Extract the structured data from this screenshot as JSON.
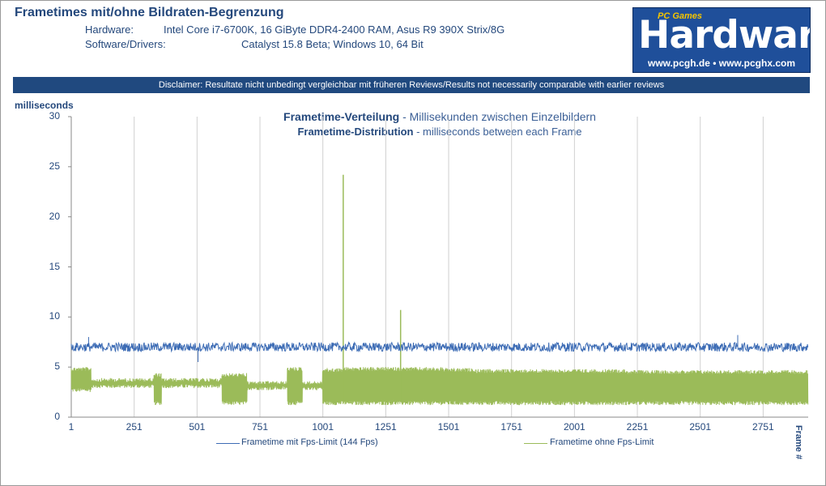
{
  "header": {
    "title": "Frametimes mit/ohne Bildraten-Begrenzung",
    "hardware_label": "Hardware:",
    "hardware_value": "Intel Core i7-6700K, 16 GiByte DDR4-2400  RAM, Asus R9 390X Strix/8G",
    "software_label": "Software/Drivers:",
    "software_value": "Catalyst 15.8 Beta; Windows 10, 64 Bit"
  },
  "logo": {
    "games": "PC Games",
    "main": "Hardware",
    "url": "www.pcgh.de  •  www.pcghx.com"
  },
  "disclaimer": "Disclaimer: Resultate nicht unbedingt vergleichbar mit früheren Reviews/Results not necessarily comparable with earlier reviews",
  "colors": {
    "blue_series": "#3d6cb5",
    "green_series": "#9bbb59",
    "accent": "#20497f"
  },
  "chart_data": {
    "type": "line",
    "title_bold": "Frametime-Verteilung",
    "title_rest": " - Millisekunden zwischen Einzelbildern",
    "subtitle_bold": "Frametime-Distribution",
    "subtitle_rest": " - milliseconds between each Frame",
    "ylabel": "milliseconds",
    "xlabel": "Frame #",
    "ylim": [
      0,
      30
    ],
    "xlim": [
      1,
      2930
    ],
    "yticks": [
      "0",
      "5",
      "10",
      "15",
      "20",
      "25",
      "30"
    ],
    "xticks": [
      "1",
      "251",
      "501",
      "751",
      "1001",
      "1251",
      "1501",
      "1751",
      "2001",
      "2251",
      "2501",
      "2751"
    ],
    "grid": "vertical",
    "legend_position": "bottom",
    "series": [
      {
        "name": "Frametime mit Fps-Limit (144 Fps)",
        "color": "#3d6cb5",
        "mean": 7.0,
        "min": 6.0,
        "max": 8.3,
        "spikes": [
          [
            70,
            8.0
          ],
          [
            505,
            5.5
          ],
          [
            2650,
            8.2
          ]
        ]
      },
      {
        "name": "Frametime ohne Fps-Limit",
        "color": "#9bbb59",
        "segments": [
          {
            "x": [
              1,
              80
            ],
            "low": 2.5,
            "high": 5.0
          },
          {
            "x": [
              80,
              330
            ],
            "low": 2.9,
            "high": 3.9
          },
          {
            "x": [
              330,
              360
            ],
            "low": 1.2,
            "high": 4.4
          },
          {
            "x": [
              360,
              600
            ],
            "low": 2.9,
            "high": 3.9
          },
          {
            "x": [
              600,
              700
            ],
            "low": 1.2,
            "high": 4.4
          },
          {
            "x": [
              700,
              860
            ],
            "low": 2.7,
            "high": 3.6
          },
          {
            "x": [
              860,
              920
            ],
            "low": 1.2,
            "high": 5.0
          },
          {
            "x": [
              920,
              1000
            ],
            "low": 2.7,
            "high": 3.6
          },
          {
            "x": [
              1000,
              1080
            ],
            "low": 1.2,
            "high": 4.9
          },
          {
            "x": [
              1080,
              1230
            ],
            "low": 1.2,
            "high": 5.0
          },
          {
            "x": [
              1230,
              1480
            ],
            "low": 1.2,
            "high": 5.0
          },
          {
            "x": [
              1480,
              1600
            ],
            "low": 1.2,
            "high": 4.9
          },
          {
            "x": [
              1600,
              1800
            ],
            "low": 1.2,
            "high": 4.8
          },
          {
            "x": [
              1800,
              2210
            ],
            "low": 1.2,
            "high": 4.8
          },
          {
            "x": [
              2210,
              2930
            ],
            "low": 1.2,
            "high": 4.7
          }
        ],
        "spikes": [
          [
            1082,
            24.2
          ],
          [
            1310,
            10.7
          ]
        ]
      }
    ]
  }
}
